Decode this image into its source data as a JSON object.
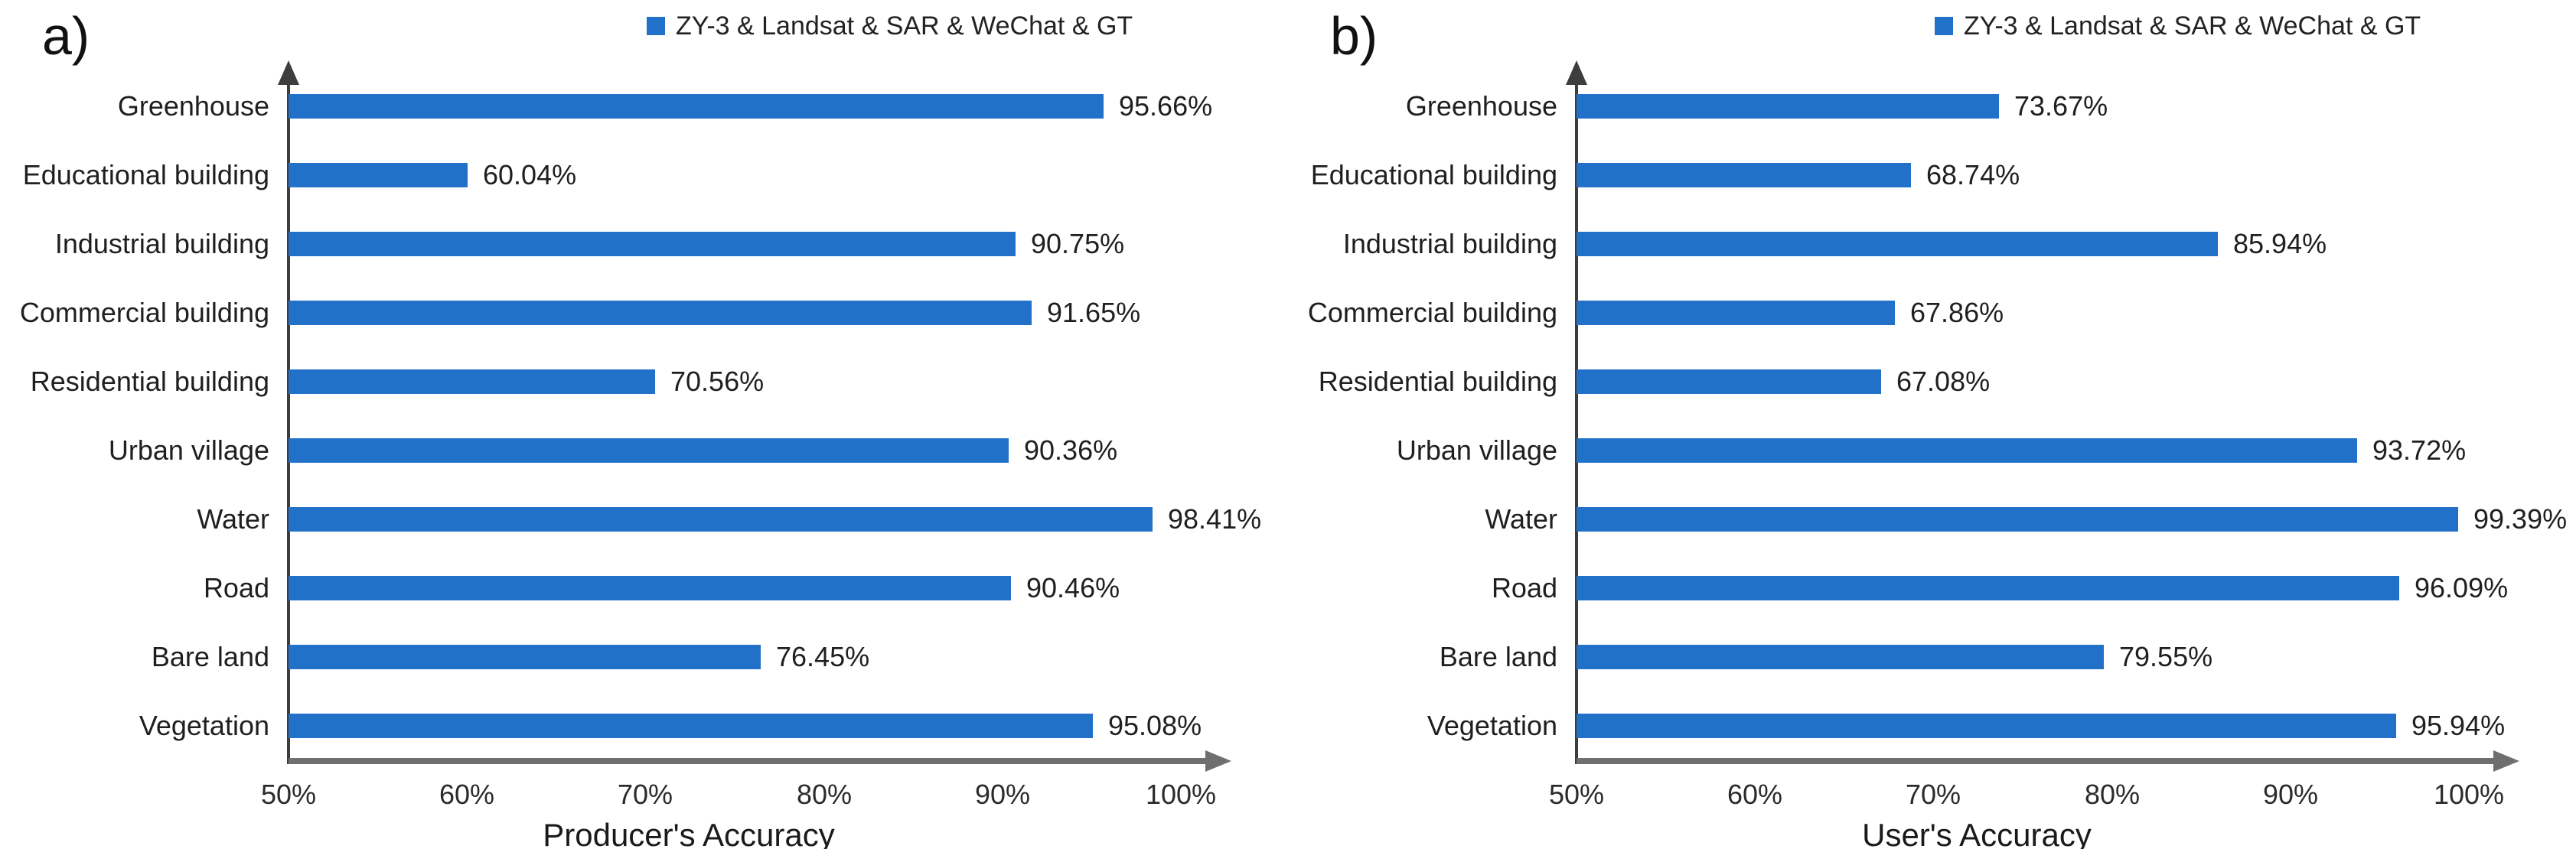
{
  "chart_data": [
    {
      "type": "bar",
      "orientation": "horizontal",
      "panel_label": "a)",
      "legend": "ZY-3 & Landsat & SAR & WeChat & GT",
      "legend_position": "top",
      "xlabel": "Producer's Accuracy",
      "categories": [
        "Greenhouse",
        "Educational building",
        "Industrial building",
        "Commercial building",
        "Residential building",
        "Urban village",
        "Water",
        "Road",
        "Bare land",
        "Vegetation"
      ],
      "values": [
        95.66,
        60.04,
        90.75,
        91.65,
        70.56,
        90.36,
        98.41,
        90.46,
        76.45,
        95.08
      ],
      "data_labels": [
        "95.66%",
        "60.04%",
        "90.75%",
        "91.65%",
        "70.56%",
        "90.36%",
        "98.41%",
        "90.46%",
        "76.45%",
        "95.08%"
      ],
      "xlim": [
        50,
        100
      ],
      "xticks": [
        "50%",
        "60%",
        "70%",
        "80%",
        "90%",
        "100%"
      ],
      "grid": false,
      "bar_color": "#2171C8"
    },
    {
      "type": "bar",
      "orientation": "horizontal",
      "panel_label": "b)",
      "legend": "ZY-3 & Landsat & SAR & WeChat & GT",
      "legend_position": "top",
      "xlabel": "User's Accuracy",
      "categories": [
        "Greenhouse",
        "Educational building",
        "Industrial building",
        "Commercial building",
        "Residential building",
        "Urban village",
        "Water",
        "Road",
        "Bare land",
        "Vegetation"
      ],
      "values": [
        73.67,
        68.74,
        85.94,
        67.86,
        67.08,
        93.72,
        99.39,
        96.09,
        79.55,
        95.94
      ],
      "data_labels": [
        "73.67%",
        "68.74%",
        "85.94%",
        "67.86%",
        "67.08%",
        "93.72%",
        "99.39%",
        "96.09%",
        "79.55%",
        "95.94%"
      ],
      "xlim": [
        50,
        100
      ],
      "xticks": [
        "50%",
        "60%",
        "70%",
        "80%",
        "90%",
        "100%"
      ],
      "grid": false,
      "bar_color": "#2171C8"
    }
  ],
  "colors": {
    "bar_blue": "#2171C8",
    "x_axis_gray": "#6f6f6f",
    "y_axis_dark": "#3d3d3d",
    "text": "#1f1f1f"
  }
}
